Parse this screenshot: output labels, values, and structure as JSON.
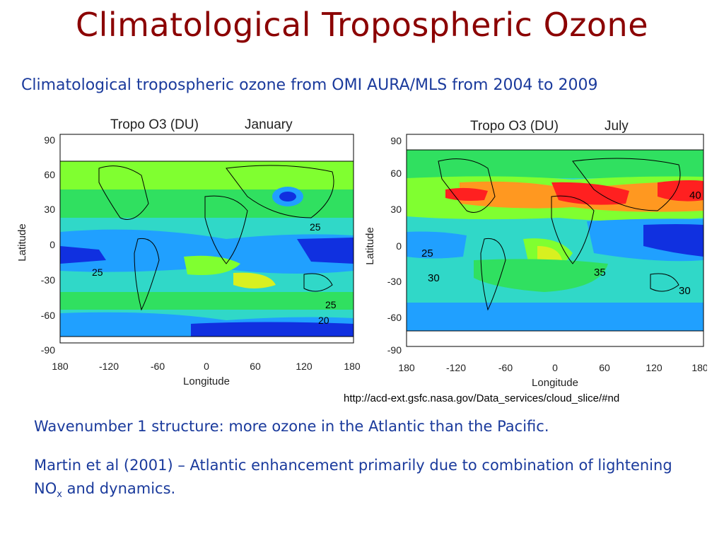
{
  "slide": {
    "title": "Climatological Tropospheric Ozone",
    "subtitle": "Climatological tropospheric ozone from OMI AURA/MLS from 2004 to 2009",
    "source_url": "http://acd-ext.gsfc.nasa.gov/Data_services/cloud_slice/#nd",
    "bullets": {
      "b1": "Wavenumber 1 structure: more ozone in the Atlantic than the Pacific.",
      "b2_pre": "Martin et al (2001) – Atlantic enhancement primarily due to combination of lightening NO",
      "b2_sub": "x",
      "b2_post": " and dynamics."
    }
  },
  "maps": {
    "left": {
      "title": "Tropo O3 (DU)",
      "month": "January",
      "ylabel": "Latitude",
      "xlabel": "Longitude",
      "y_ticks": [
        "90",
        "60",
        "30",
        "0",
        "-30",
        "-60",
        "-90"
      ],
      "x_ticks": [
        "180",
        "-120",
        "-60",
        "0",
        "60",
        "120",
        "180"
      ],
      "contour_labels": [
        "25",
        "25",
        "25",
        "20"
      ]
    },
    "right": {
      "title": "Tropo O3 (DU)",
      "month": "July",
      "ylabel": "Latitude",
      "xlabel": "Longitude",
      "y_ticks": [
        "90",
        "60",
        "30",
        "0",
        "-30",
        "-60",
        "-90"
      ],
      "x_ticks": [
        "180",
        "-120",
        "-60",
        "0",
        "60",
        "120",
        "180"
      ],
      "contour_labels": [
        "25",
        "30",
        "35",
        "40",
        "30"
      ]
    }
  },
  "colors": {
    "title": "#8b0000",
    "text_blue": "#1a3a9c",
    "ozone_darkblue": "#1030e0",
    "ozone_blue": "#20a0ff",
    "ozone_cyan": "#30d8c8",
    "ozone_green": "#30e060",
    "ozone_lightgreen": "#80ff30",
    "ozone_yellow": "#d8f020",
    "ozone_orange": "#ff9820",
    "ozone_red": "#ff2020"
  }
}
